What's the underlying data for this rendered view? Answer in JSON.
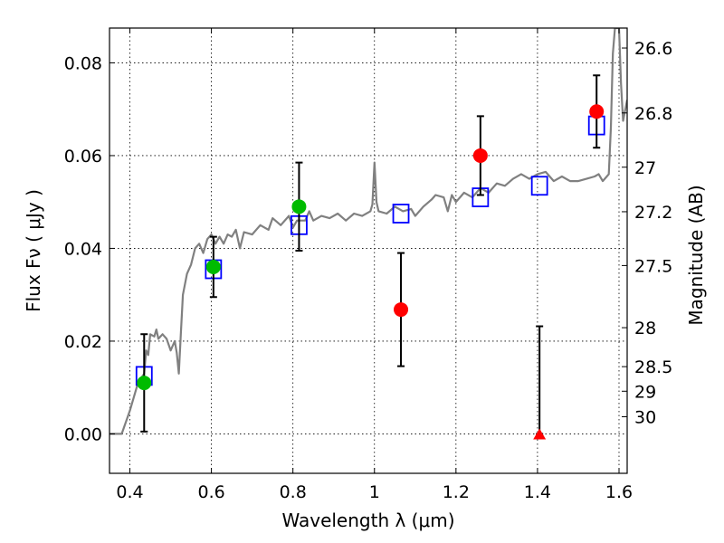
{
  "chart_data": {
    "type": "scatter",
    "xlabel": "Wavelength  λ (μm)",
    "ylabel": "Flux  Fν ( μJy )",
    "ylabel_right": "Magnitude (AB)",
    "xlim": [
      0.35,
      1.62
    ],
    "ylim": [
      -0.0085,
      0.0875
    ],
    "x_ticks": [
      0.4,
      0.6,
      0.8,
      1.0,
      1.2,
      1.4,
      1.6
    ],
    "x_tick_labels": [
      "0.4",
      "0.6",
      "0.8",
      "1",
      "1.2",
      "1.4",
      "1.6"
    ],
    "y_ticks": [
      0.0,
      0.02,
      0.04,
      0.06,
      0.08
    ],
    "y_tick_labels": [
      "0.00",
      "0.02",
      "0.04",
      "0.06",
      "0.08"
    ],
    "magnitude_ticks": [
      {
        "label": "26.6",
        "flux": 0.0832
      },
      {
        "label": "26.8",
        "flux": 0.0692
      },
      {
        "label": "27",
        "flux": 0.0575
      },
      {
        "label": "27.2",
        "flux": 0.0479
      },
      {
        "label": "27.5",
        "flux": 0.0363
      },
      {
        "label": "28",
        "flux": 0.0229
      },
      {
        "label": "28.5",
        "flux": 0.0145
      },
      {
        "label": "29",
        "flux": 0.0092
      },
      {
        "label": "30",
        "flux": 0.0037
      }
    ],
    "grid": true,
    "colors": {
      "template": "#808080",
      "model_box": "#0000ff",
      "optical": "#00bb00",
      "nir": "#ff0000",
      "errorbar": "#000000"
    },
    "template_spectrum": [
      [
        0.35,
        0.0
      ],
      [
        0.38,
        0.0
      ],
      [
        0.4,
        0.005
      ],
      [
        0.42,
        0.011
      ],
      [
        0.435,
        0.013
      ],
      [
        0.44,
        0.018
      ],
      [
        0.445,
        0.017
      ],
      [
        0.45,
        0.0215
      ],
      [
        0.46,
        0.021
      ],
      [
        0.465,
        0.0225
      ],
      [
        0.47,
        0.0205
      ],
      [
        0.48,
        0.0215
      ],
      [
        0.49,
        0.0205
      ],
      [
        0.5,
        0.018
      ],
      [
        0.51,
        0.02
      ],
      [
        0.515,
        0.0175
      ],
      [
        0.52,
        0.013
      ],
      [
        0.525,
        0.0215
      ],
      [
        0.53,
        0.03
      ],
      [
        0.54,
        0.0345
      ],
      [
        0.55,
        0.0365
      ],
      [
        0.56,
        0.04
      ],
      [
        0.57,
        0.041
      ],
      [
        0.58,
        0.039
      ],
      [
        0.59,
        0.042
      ],
      [
        0.6,
        0.043
      ],
      [
        0.61,
        0.041
      ],
      [
        0.62,
        0.0425
      ],
      [
        0.63,
        0.041
      ],
      [
        0.64,
        0.043
      ],
      [
        0.65,
        0.0425
      ],
      [
        0.66,
        0.044
      ],
      [
        0.67,
        0.04
      ],
      [
        0.68,
        0.0435
      ],
      [
        0.7,
        0.043
      ],
      [
        0.72,
        0.045
      ],
      [
        0.74,
        0.044
      ],
      [
        0.75,
        0.0465
      ],
      [
        0.77,
        0.045
      ],
      [
        0.79,
        0.047
      ],
      [
        0.8,
        0.0445
      ],
      [
        0.81,
        0.046
      ],
      [
        0.83,
        0.046
      ],
      [
        0.84,
        0.048
      ],
      [
        0.85,
        0.046
      ],
      [
        0.87,
        0.047
      ],
      [
        0.89,
        0.0465
      ],
      [
        0.91,
        0.0475
      ],
      [
        0.93,
        0.046
      ],
      [
        0.95,
        0.0475
      ],
      [
        0.97,
        0.047
      ],
      [
        0.99,
        0.048
      ],
      [
        0.995,
        0.0495
      ],
      [
        1.0,
        0.0585
      ],
      [
        1.005,
        0.05
      ],
      [
        1.01,
        0.048
      ],
      [
        1.03,
        0.0475
      ],
      [
        1.05,
        0.049
      ],
      [
        1.07,
        0.048
      ],
      [
        1.09,
        0.0485
      ],
      [
        1.1,
        0.047
      ],
      [
        1.12,
        0.049
      ],
      [
        1.14,
        0.0505
      ],
      [
        1.15,
        0.0515
      ],
      [
        1.17,
        0.051
      ],
      [
        1.18,
        0.048
      ],
      [
        1.19,
        0.0515
      ],
      [
        1.2,
        0.05
      ],
      [
        1.22,
        0.052
      ],
      [
        1.24,
        0.051
      ],
      [
        1.26,
        0.053
      ],
      [
        1.28,
        0.052
      ],
      [
        1.3,
        0.054
      ],
      [
        1.32,
        0.0535
      ],
      [
        1.34,
        0.055
      ],
      [
        1.36,
        0.056
      ],
      [
        1.38,
        0.055
      ],
      [
        1.4,
        0.056
      ],
      [
        1.42,
        0.0565
      ],
      [
        1.44,
        0.0545
      ],
      [
        1.46,
        0.0555
      ],
      [
        1.48,
        0.0545
      ],
      [
        1.5,
        0.0545
      ],
      [
        1.52,
        0.055
      ],
      [
        1.54,
        0.0555
      ],
      [
        1.55,
        0.056
      ],
      [
        1.56,
        0.0545
      ],
      [
        1.57,
        0.0555
      ],
      [
        1.575,
        0.056
      ],
      [
        1.58,
        0.066
      ],
      [
        1.585,
        0.082
      ],
      [
        1.59,
        0.0875
      ],
      [
        1.6,
        0.0875
      ],
      [
        1.605,
        0.0755
      ],
      [
        1.61,
        0.0675
      ],
      [
        1.62,
        0.072
      ]
    ],
    "model_boxes": [
      {
        "x": 0.435,
        "y": 0.0125
      },
      {
        "x": 0.605,
        "y": 0.0355
      },
      {
        "x": 0.815,
        "y": 0.045
      },
      {
        "x": 1.065,
        "y": 0.0475
      },
      {
        "x": 1.26,
        "y": 0.051
      },
      {
        "x": 1.405,
        "y": 0.0535
      },
      {
        "x": 1.545,
        "y": 0.0665
      }
    ],
    "optical_points": [
      {
        "x": 0.435,
        "y": 0.011,
        "yerr_low": 0.0105,
        "yerr_high": 0.0105
      },
      {
        "x": 0.605,
        "y": 0.036,
        "yerr_low": 0.0065,
        "yerr_high": 0.0065
      },
      {
        "x": 0.815,
        "y": 0.049,
        "yerr_low": 0.0095,
        "yerr_high": 0.0095
      }
    ],
    "nir_points": [
      {
        "x": 1.065,
        "y": 0.0268,
        "yerr_low": 0.0122,
        "yerr_high": 0.0122
      },
      {
        "x": 1.26,
        "y": 0.06,
        "yerr_low": 0.0085,
        "yerr_high": 0.0085
      },
      {
        "x": 1.545,
        "y": 0.0695,
        "yerr_low": 0.0078,
        "yerr_high": 0.0078
      }
    ],
    "upper_limits": [
      {
        "x": 1.405,
        "y": 0.0,
        "yerr_low": 0.0,
        "yerr_high": 0.0232
      }
    ]
  }
}
